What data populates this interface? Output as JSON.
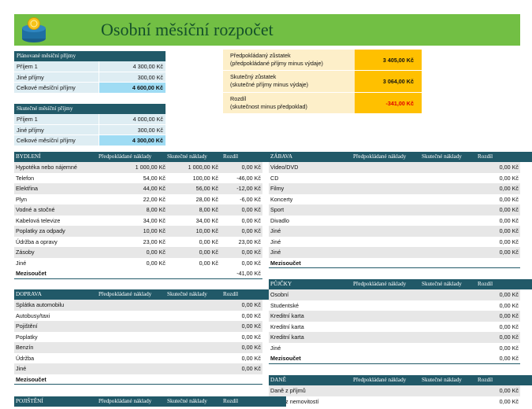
{
  "header": {
    "title": "Osobní měsíční rozpočet"
  },
  "planned_income": {
    "title": "Plánované měsíční příjmy",
    "rows": [
      {
        "label": "Příjem 1",
        "value": "4 300,00 Kč"
      },
      {
        "label": "Jiné příjmy",
        "value": "300,00 Kč"
      },
      {
        "label": "Celkové měsíční příjmy",
        "value": "4 600,00 Kč"
      }
    ]
  },
  "actual_income": {
    "title": "Skutečné měsíční příjmy",
    "rows": [
      {
        "label": "Příjem 1",
        "value": "4 000,00 Kč"
      },
      {
        "label": "Jiné příjmy",
        "value": "300,00 Kč"
      },
      {
        "label": "Celkové měsíční příjmy",
        "value": "4 300,00 Kč"
      }
    ]
  },
  "summary": {
    "rows": [
      {
        "label": "Předpokládaný zůstatek",
        "note": "(předpokládané příjmy minus výdaje)",
        "value": "3 405,00 Kč"
      },
      {
        "label": "Skutečný zůstatek",
        "note": "(skutečné příjmy minus výdaje)",
        "value": "3 064,00 Kč"
      },
      {
        "label": "Rozdíl",
        "note": "(skutečnost minus předpoklad)",
        "value": "-341,00 Kč"
      }
    ]
  },
  "sections": [
    {
      "title": "BYDLENÍ",
      "columns": [
        "Předpokládané náklady",
        "Skutečné náklady",
        "Rozdíl"
      ],
      "rows": [
        {
          "label": "Hypotéka nebo nájemné",
          "planned": "1 000,00 Kč",
          "actual": "1 000,00 Kč",
          "difference": "0,00 Kč"
        },
        {
          "label": "Telefon",
          "planned": "54,00 Kč",
          "actual": "100,00 Kč",
          "difference": "-46,00 Kč"
        },
        {
          "label": "Elektřina",
          "planned": "44,00 Kč",
          "actual": "56,00 Kč",
          "difference": "-12,00 Kč"
        },
        {
          "label": "Plyn",
          "planned": "22,00 Kč",
          "actual": "28,00 Kč",
          "difference": "-6,00 Kč"
        },
        {
          "label": "Vodné a stočné",
          "planned": "8,00 Kč",
          "actual": "8,00 Kč",
          "difference": "0,00 Kč"
        },
        {
          "label": "Kabelová televize",
          "planned": "34,00 Kč",
          "actual": "34,00 Kč",
          "difference": "0,00 Kč"
        },
        {
          "label": "Poplatky za odpady",
          "planned": "10,00 Kč",
          "actual": "10,00 Kč",
          "difference": "0,00 Kč"
        },
        {
          "label": "Údržba a opravy",
          "planned": "23,00 Kč",
          "actual": "0,00 Kč",
          "difference": "23,00 Kč"
        },
        {
          "label": "Zásoby",
          "planned": "0,00 Kč",
          "actual": "0,00 Kč",
          "difference": "0,00 Kč"
        },
        {
          "label": "Jiné",
          "planned": "0,00 Kč",
          "actual": "0,00 Kč",
          "difference": "0,00 Kč"
        }
      ],
      "subtotal": {
        "label": "Mezisoučet",
        "difference": "-41,00 Kč"
      }
    },
    {
      "title": "ZÁBAVA",
      "columns": [
        "Předpokládané náklady",
        "Skutečné náklady",
        "Rozdíl"
      ],
      "rows": [
        {
          "label": "Video/DVD",
          "difference": "0,00 Kč"
        },
        {
          "label": "CD",
          "difference": "0,00 Kč"
        },
        {
          "label": "Filmy",
          "difference": "0,00 Kč"
        },
        {
          "label": "Koncerty",
          "difference": "0,00 Kč"
        },
        {
          "label": "Sport",
          "difference": "0,00 Kč"
        },
        {
          "label": "Divadlo",
          "difference": "0,00 Kč"
        },
        {
          "label": "Jiné",
          "difference": "0,00 Kč"
        },
        {
          "label": "Jiné",
          "difference": "0,00 Kč"
        },
        {
          "label": "Jiné",
          "difference": "0,00 Kč"
        }
      ],
      "subtotal": {
        "label": "Mezisoučet"
      }
    },
    {
      "title": "DOPRAVA",
      "columns": [
        "Předpokládané náklady",
        "Skutečné náklady",
        "Rozdíl"
      ],
      "rows": [
        {
          "label": "Splátka automobilu",
          "difference": "0,00 Kč"
        },
        {
          "label": "Autobusy/taxi",
          "difference": "0,00 Kč"
        },
        {
          "label": "Pojištění",
          "difference": "0,00 Kč"
        },
        {
          "label": "Poplatky",
          "difference": "0,00 Kč"
        },
        {
          "label": "Benzín",
          "difference": "0,00 Kč"
        },
        {
          "label": "Údržba",
          "difference": "0,00 Kč"
        },
        {
          "label": "Jiné",
          "difference": "0,00 Kč"
        }
      ],
      "subtotal": {
        "label": "Mezisoučet"
      }
    },
    {
      "title": "PŮJČKY",
      "columns": [
        "Předpokládané náklady",
        "Skutečné náklady",
        "Rozdíl"
      ],
      "rows": [
        {
          "label": "Osobní",
          "difference": "0,00 Kč"
        },
        {
          "label": "Studentské",
          "difference": "0,00 Kč"
        },
        {
          "label": "Kreditní karta",
          "difference": "0,00 Kč"
        },
        {
          "label": "Kreditní karta",
          "difference": "0,00 Kč"
        },
        {
          "label": "Kreditní karta",
          "difference": "0,00 Kč"
        },
        {
          "label": "Jiné",
          "difference": "0,00 Kč"
        }
      ],
      "subtotal": {
        "label": "Mezisoučet",
        "difference": "0,00 Kč"
      }
    },
    {
      "title": "DANĚ",
      "columns": [
        "Předpokládané náklady",
        "Skutečné náklady",
        "Rozdíl"
      ],
      "rows": [
        {
          "label": "Daně z příjmů",
          "difference": "0,00 Kč"
        },
        {
          "label": "Daně z nemovitostí",
          "difference": "0,00 Kč"
        }
      ]
    },
    {
      "title": "POJIŠTĚNÍ",
      "columns": [
        "Předpokládané náklady",
        "Skutečné náklady",
        "Rozdíl"
      ],
      "rows": []
    }
  ]
}
